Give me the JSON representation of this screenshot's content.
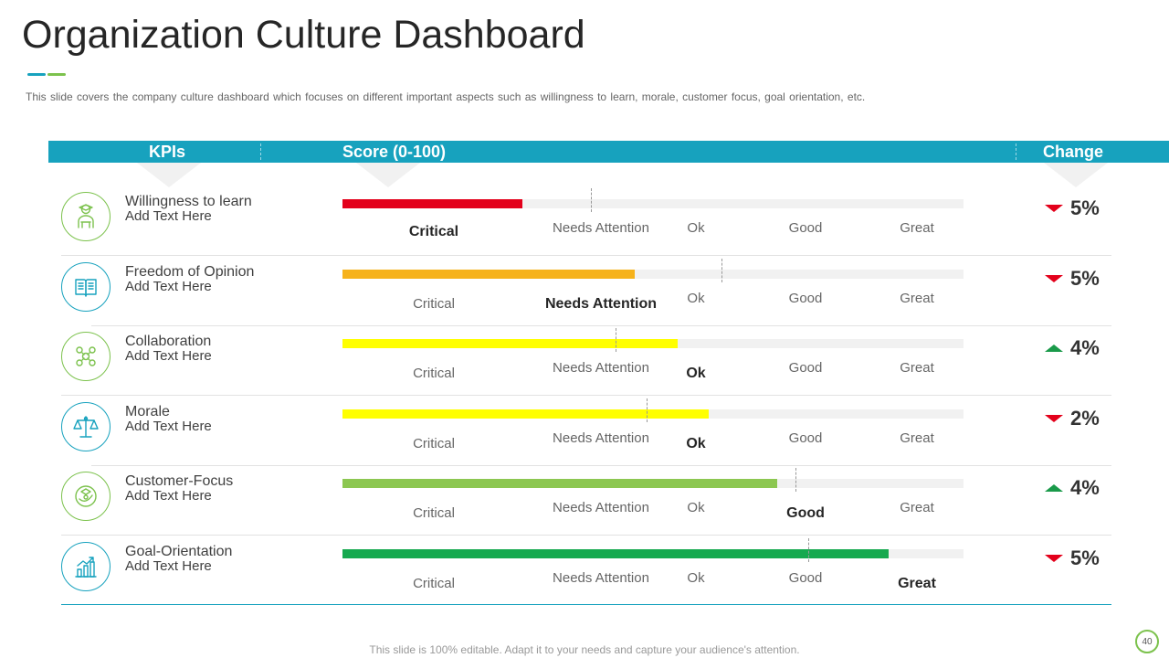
{
  "title": "Organization Culture Dashboard",
  "subtitle": "This slide covers the company culture dashboard which focuses on different  important aspects such as willingness to learn, morale, customer focus, goal orientation, etc.",
  "header": {
    "kpis": "KPIs",
    "score": "Score (0-100)",
    "change": "Change"
  },
  "colors": {
    "header": "#17A2BE",
    "accent_blue": "#17A2BE",
    "accent_green": "#7CC24D",
    "down": "#E3001B",
    "up": "#1A9A4A"
  },
  "level_labels": [
    "Critical",
    "Needs Attention",
    "Ok",
    "Good",
    "Great"
  ],
  "rows": [
    {
      "name": "Willingness to learn",
      "sub": "Add Text Here",
      "icon": "learner-icon",
      "icon_color": "#7CC24D",
      "score": 29,
      "bar_color": "#E3001B",
      "active_level": 0,
      "marker": 40,
      "direction": "down",
      "change": "5%"
    },
    {
      "name": "Freedom of Opinion",
      "sub": "Add Text Here",
      "icon": "book-icon",
      "icon_color": "#17A2BE",
      "score": 47,
      "bar_color": "#F6B21B",
      "active_level": 1,
      "marker": 61,
      "direction": "down",
      "change": "5%"
    },
    {
      "name": "Collaboration",
      "sub": "Add Text Here",
      "icon": "team-icon",
      "icon_color": "#7CC24D",
      "score": 54,
      "bar_color": "#FFFF00",
      "active_level": 2,
      "marker": 44,
      "direction": "up",
      "change": "4%"
    },
    {
      "name": "Morale",
      "sub": "Add Text Here",
      "icon": "balance-scale-icon",
      "icon_color": "#17A2BE",
      "score": 59,
      "bar_color": "#FFFF00",
      "active_level": 2,
      "marker": 49,
      "direction": "down",
      "change": "2%"
    },
    {
      "name": "Customer-Focus",
      "sub": "Add Text Here",
      "icon": "customer-focus-icon",
      "icon_color": "#7CC24D",
      "score": 70,
      "bar_color": "#8CC751",
      "active_level": 3,
      "marker": 73,
      "direction": "up",
      "change": "4%"
    },
    {
      "name": "Goal-Orientation",
      "sub": "Add Text Here",
      "icon": "growth-chart-icon",
      "icon_color": "#17A2BE",
      "score": 88,
      "bar_color": "#16A94F",
      "active_level": 4,
      "marker": 75,
      "direction": "down",
      "change": "5%"
    }
  ],
  "footer": "This slide is 100% editable. Adapt it to your needs and capture your audience's attention.",
  "page_number": "40"
}
